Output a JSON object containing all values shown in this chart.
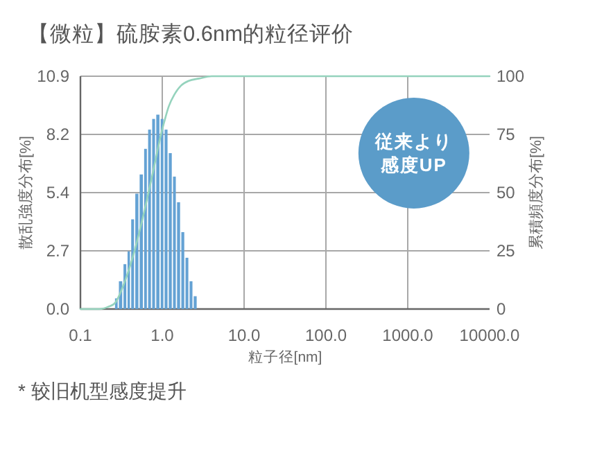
{
  "chart_data": {
    "type": "histogram",
    "title": "【微粒】硫胺素0.6nm的粒径评价",
    "xlabel": "粒子径[nm]",
    "ylabel": "散乱強度分布[%]",
    "y2label": "累積頻度分布[%]",
    "annotations": [
      "従来より",
      "感度UP",
      "* 较旧机型感度提升"
    ],
    "log": "x",
    "grid": true,
    "xlim": [
      0.1,
      10000
    ],
    "xticks": [
      0.1,
      {
        "value": 1,
        "label": "1.0"
      },
      {
        "value": 10,
        "label": "10.0"
      },
      {
        "value": 100,
        "label": "100.0"
      },
      {
        "value": 1000,
        "label": "1000.0"
      },
      {
        "value": 10000,
        "label": "10000.0"
      }
    ],
    "ylim": [
      0,
      10.9
    ],
    "yticks": [
      {
        "value": 0,
        "label": "0.0"
      },
      {
        "value": 2.725,
        "label": "2.7"
      },
      {
        "value": 5.45,
        "label": "5.4"
      },
      {
        "value": 8.175,
        "label": "8.2"
      },
      10.9
    ],
    "y2lim": [
      0,
      100
    ],
    "y2ticks": [
      0,
      25,
      50,
      75,
      100
    ],
    "series": [
      {
        "color": "#64a2d4",
        "bins": [
          0.26,
          0.29,
          0.33,
          0.37,
          0.41,
          0.46,
          0.52,
          0.59,
          0.66,
          0.74,
          0.83,
          0.94,
          1.05,
          1.18,
          1.33,
          1.49,
          1.68,
          1.89,
          2.12,
          2.38,
          2.68
        ],
        "values": [
          0.5,
          1.3,
          2.1,
          2.7,
          4.2,
          5.4,
          6.3,
          7.5,
          8.4,
          8.9,
          9.1,
          8.9,
          8.4,
          7.3,
          6.2,
          5.0,
          3.6,
          2.4,
          1.3,
          0.6
        ]
      },
      {
        "type": "line",
        "axis": "y2",
        "color": "#95d3bd",
        "x": [
          0.1,
          0.17,
          0.22,
          0.27,
          0.35,
          0.45,
          0.55,
          0.65,
          0.75,
          0.85,
          0.95,
          1.05,
          1.2,
          1.4,
          1.7,
          2.1,
          2.8,
          4,
          10000
        ],
        "values": [
          0,
          0,
          1,
          3,
          12,
          24,
          36,
          47,
          57,
          66,
          74,
          80,
          87,
          92,
          96,
          98,
          99,
          100,
          100
        ]
      }
    ]
  }
}
